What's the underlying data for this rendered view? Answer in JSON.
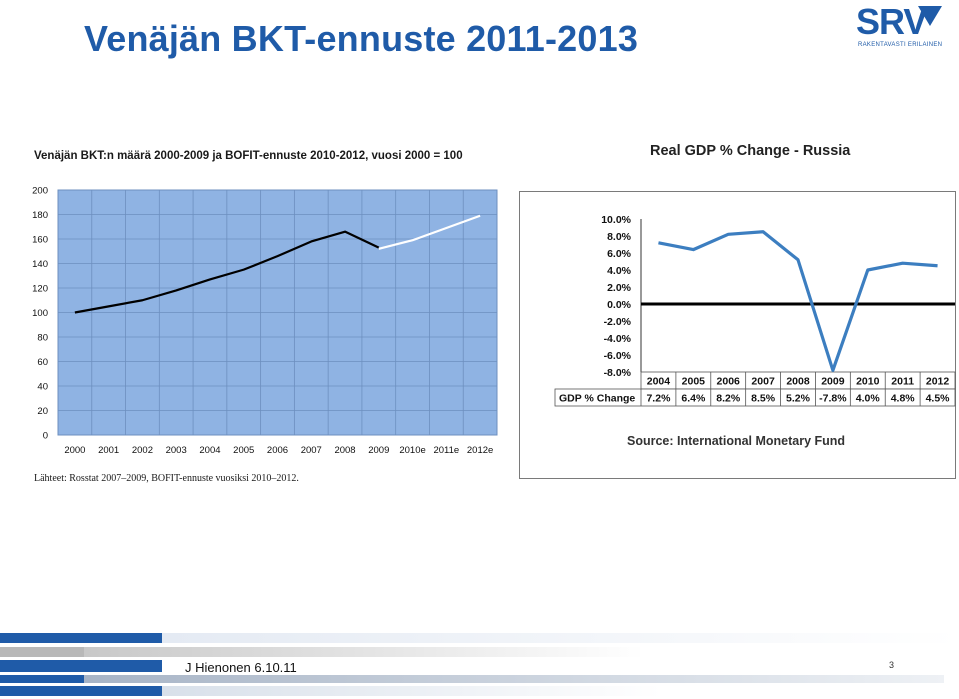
{
  "slide": {
    "title": "Venäjän BKT-ennuste 2011-2013",
    "footer": "J Hienonen 6.10.11",
    "page_number": "3"
  },
  "logo": {
    "name": "SRV",
    "tagline": "RAKENTAVASTI ERILAINEN"
  },
  "colors": {
    "title_blue": "#1f5ba8",
    "plot_bg": "#8fb3e3",
    "gdp_line": "#3c7ec0",
    "actual_line": "#000000",
    "forecast_line": "#ffffff"
  },
  "chart_data": [
    {
      "type": "line",
      "title": "Venäjän BKT:n määrä 2000-2009 ja BOFIT-ennuste 2010-2012, vuosi 2000 = 100",
      "source": "Lähteet: Rosstat 2007–2009, BOFIT-ennuste vuosiksi 2010–2012.",
      "categories": [
        "2000",
        "2001",
        "2002",
        "2003",
        "2004",
        "2005",
        "2006",
        "2007",
        "2008",
        "2009",
        "2010e",
        "2011e",
        "2012e"
      ],
      "series": [
        {
          "role": "actual",
          "values": [
            100,
            105,
            110,
            118,
            127,
            135,
            146,
            158,
            166,
            153,
            null,
            null,
            null
          ]
        },
        {
          "role": "forecast",
          "values": [
            null,
            null,
            null,
            null,
            null,
            null,
            null,
            null,
            null,
            152,
            159,
            169,
            179
          ]
        }
      ],
      "yticks": [
        0,
        20,
        40,
        60,
        80,
        100,
        120,
        140,
        160,
        180,
        200
      ],
      "ylim": [
        0,
        200
      ],
      "grid": true
    },
    {
      "type": "line",
      "title": "Real GDP % Change - Russia",
      "source": "Source: International Monetary Fund",
      "categories": [
        "2004",
        "2005",
        "2006",
        "2007",
        "2008",
        "2009",
        "2010",
        "2011",
        "2012"
      ],
      "series": [
        {
          "name": "GDP % Change",
          "values": [
            7.2,
            6.4,
            8.2,
            8.5,
            5.2,
            -7.8,
            4.0,
            4.8,
            4.5
          ]
        }
      ],
      "value_labels": [
        "7.2%",
        "6.4%",
        "8.2%",
        "8.5%",
        "5.2%",
        "-7.8%",
        "4.0%",
        "4.8%",
        "4.5%"
      ],
      "ytick_labels": [
        "10.0%",
        "8.0%",
        "6.0%",
        "4.0%",
        "2.0%",
        "0.0%",
        "-2.0%",
        "-4.0%",
        "-6.0%",
        "-8.0%"
      ],
      "yticks": [
        10,
        8,
        6,
        4,
        2,
        0,
        -2,
        -4,
        -6,
        -8
      ],
      "ylim": [
        -8,
        10
      ],
      "grid": false
    }
  ]
}
